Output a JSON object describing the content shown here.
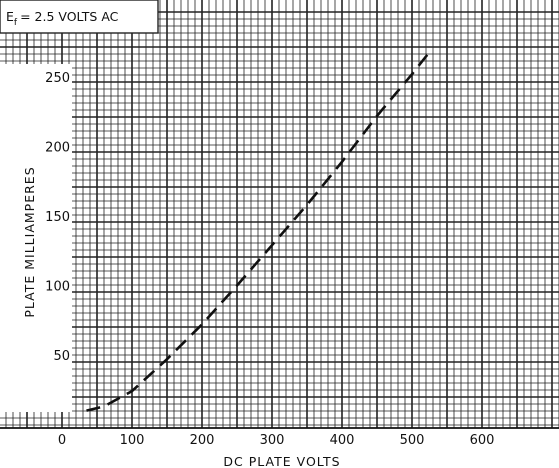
{
  "chart_data": {
    "type": "line",
    "annotation": {
      "symbol": "E",
      "subscript": "f",
      "text": "= 2.5 VOLTS AC"
    },
    "xlabel": "DC PLATE VOLTS",
    "ylabel": "PLATE MILLIAMPERES",
    "x_ticks": [
      0,
      100,
      200,
      300,
      400,
      500,
      600
    ],
    "y_ticks": [
      50,
      100,
      150,
      200,
      250
    ],
    "xlim": [
      -10,
      680
    ],
    "ylim": [
      5,
      272
    ],
    "grid": true,
    "series": [
      {
        "line_style": "dashed",
        "color": "#111111",
        "x": [
          35,
          60,
          100,
          150,
          200,
          250,
          300,
          350,
          400,
          450,
          500,
          525
        ],
        "y": [
          10,
          13,
          24,
          47,
          72,
          100,
          129,
          158,
          189,
          222,
          252,
          268
        ]
      }
    ]
  }
}
